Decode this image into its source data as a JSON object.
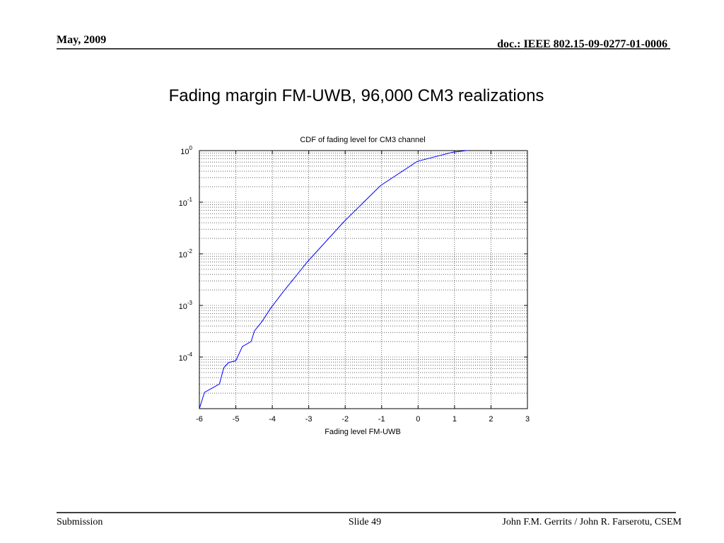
{
  "header": {
    "date": "May, 2009",
    "doc": "doc.: IEEE 802.15-09-0277-01-0006"
  },
  "slide_title": "Fading margin FM-UWB, 96,000 CM3 realizations",
  "footer": {
    "left": "Submission",
    "center": "Slide 49",
    "right": "John F.M. Gerrits / John R. Farserotu, CSEM"
  },
  "chart_data": {
    "type": "line",
    "title": "CDF of fading level for CM3 channel",
    "x_label": "Fading level FM-UWB",
    "x": [
      -6,
      -5.86,
      -5.45,
      -5.33,
      -5.2,
      -5.0,
      -4.82,
      -4.58,
      -4.49,
      -4.29,
      -4.04,
      -3.71,
      -3.03,
      -2.02,
      -1.03,
      -0.02,
      0.95,
      1.34
    ],
    "series": [
      {
        "name": "CDF",
        "color": "#0000ff",
        "values": [
          1e-05,
          2.07e-05,
          3e-05,
          6.2e-05,
          7.8e-05,
          8.5e-05,
          0.00016,
          0.0002,
          0.00032,
          0.00048,
          0.00089,
          0.0018,
          0.0071,
          0.043,
          0.21,
          0.62,
          0.93,
          1
        ]
      }
    ],
    "xlim": [
      -6,
      3
    ],
    "xticks": [
      -6,
      -5,
      -4,
      -3,
      -2,
      -1,
      0,
      1,
      2,
      3
    ],
    "ylim": [
      1e-05,
      1
    ],
    "yscale": "log",
    "yticks": [
      {
        "value": 1,
        "label": "10",
        "exponent": "0"
      },
      {
        "value": 0.1,
        "label": "10",
        "exponent": "-1"
      },
      {
        "value": 0.01,
        "label": "10",
        "exponent": "-2"
      },
      {
        "value": 0.001,
        "label": "10",
        "exponent": "-3"
      },
      {
        "value": 0.0001,
        "label": "10",
        "exponent": "-4"
      }
    ],
    "grid": true,
    "minor_grid": true
  }
}
